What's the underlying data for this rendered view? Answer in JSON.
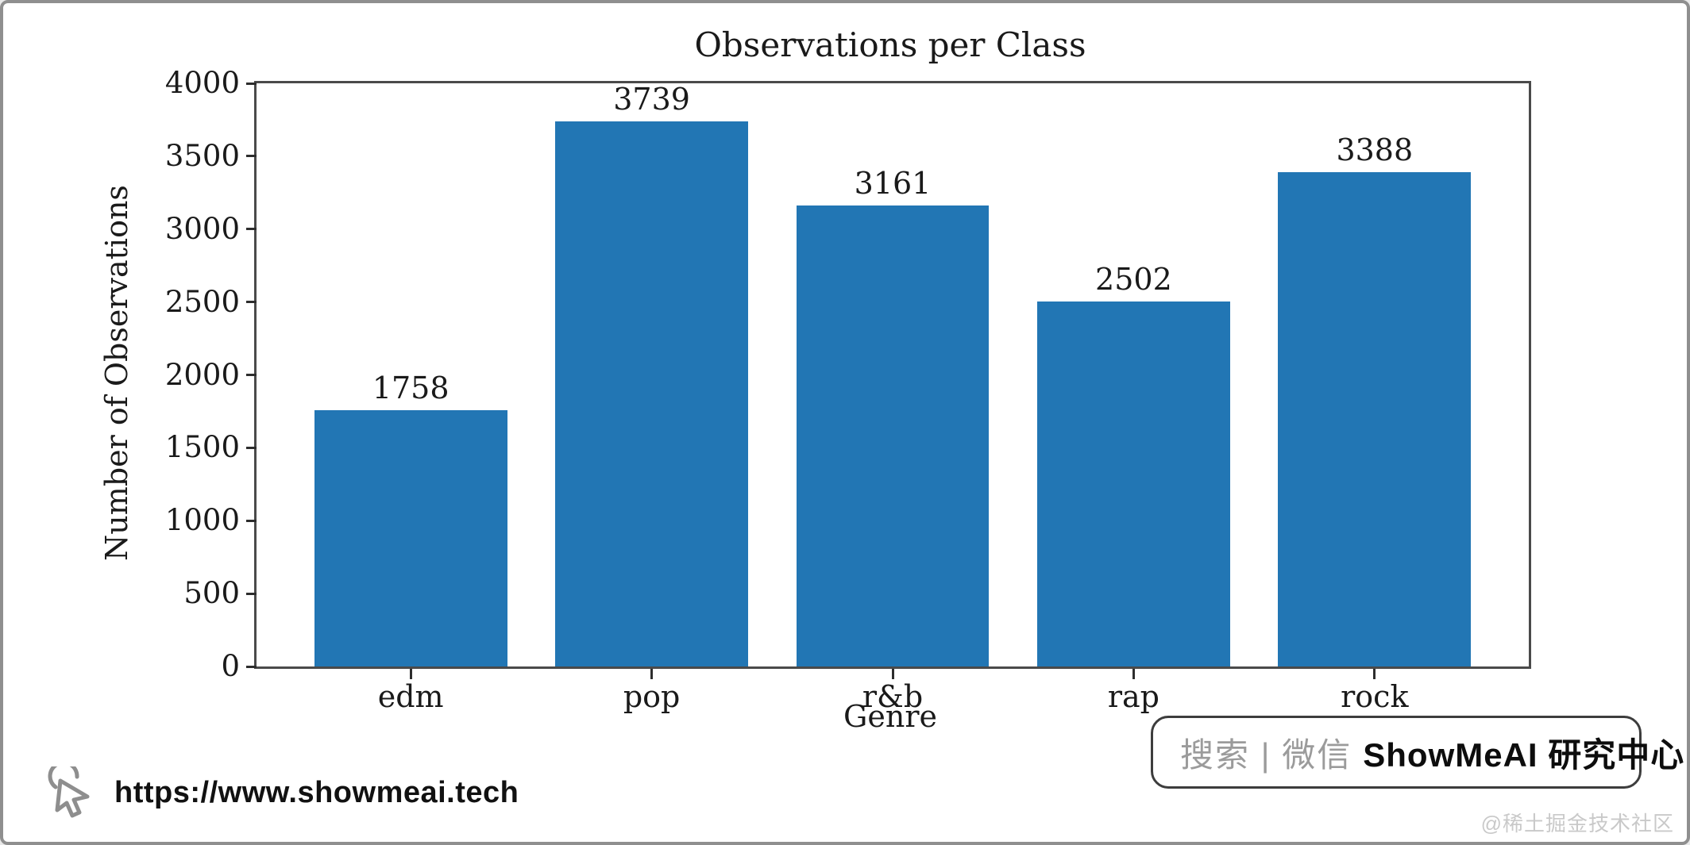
{
  "chart_data": {
    "type": "bar",
    "title": "Observations per Class",
    "xlabel": "Genre",
    "ylabel": "Number of Observations",
    "categories": [
      "edm",
      "pop",
      "r&b",
      "rap",
      "rock"
    ],
    "values": [
      1758,
      3739,
      3161,
      2502,
      3388
    ],
    "bar_labels": [
      1758,
      3739,
      3161,
      2502,
      3388
    ],
    "ylim": [
      0,
      4000
    ],
    "yticks": [
      0,
      500,
      1000,
      1500,
      2000,
      2500,
      3000,
      3500,
      4000
    ],
    "grid": false,
    "legend": null,
    "bar_color": "#2276b4",
    "spine_color": "#4a4a4a"
  },
  "watermark": {
    "search_icon": "magnifier-icon",
    "search_label": "搜索 | 微信",
    "brand_label": "ShowMeAI 研究中心"
  },
  "footer": {
    "cursor_icon": "cursor-pointer-icon",
    "url_text": "https://www.showmeai.tech",
    "credit_text": "@稀土掘金技术社区"
  }
}
